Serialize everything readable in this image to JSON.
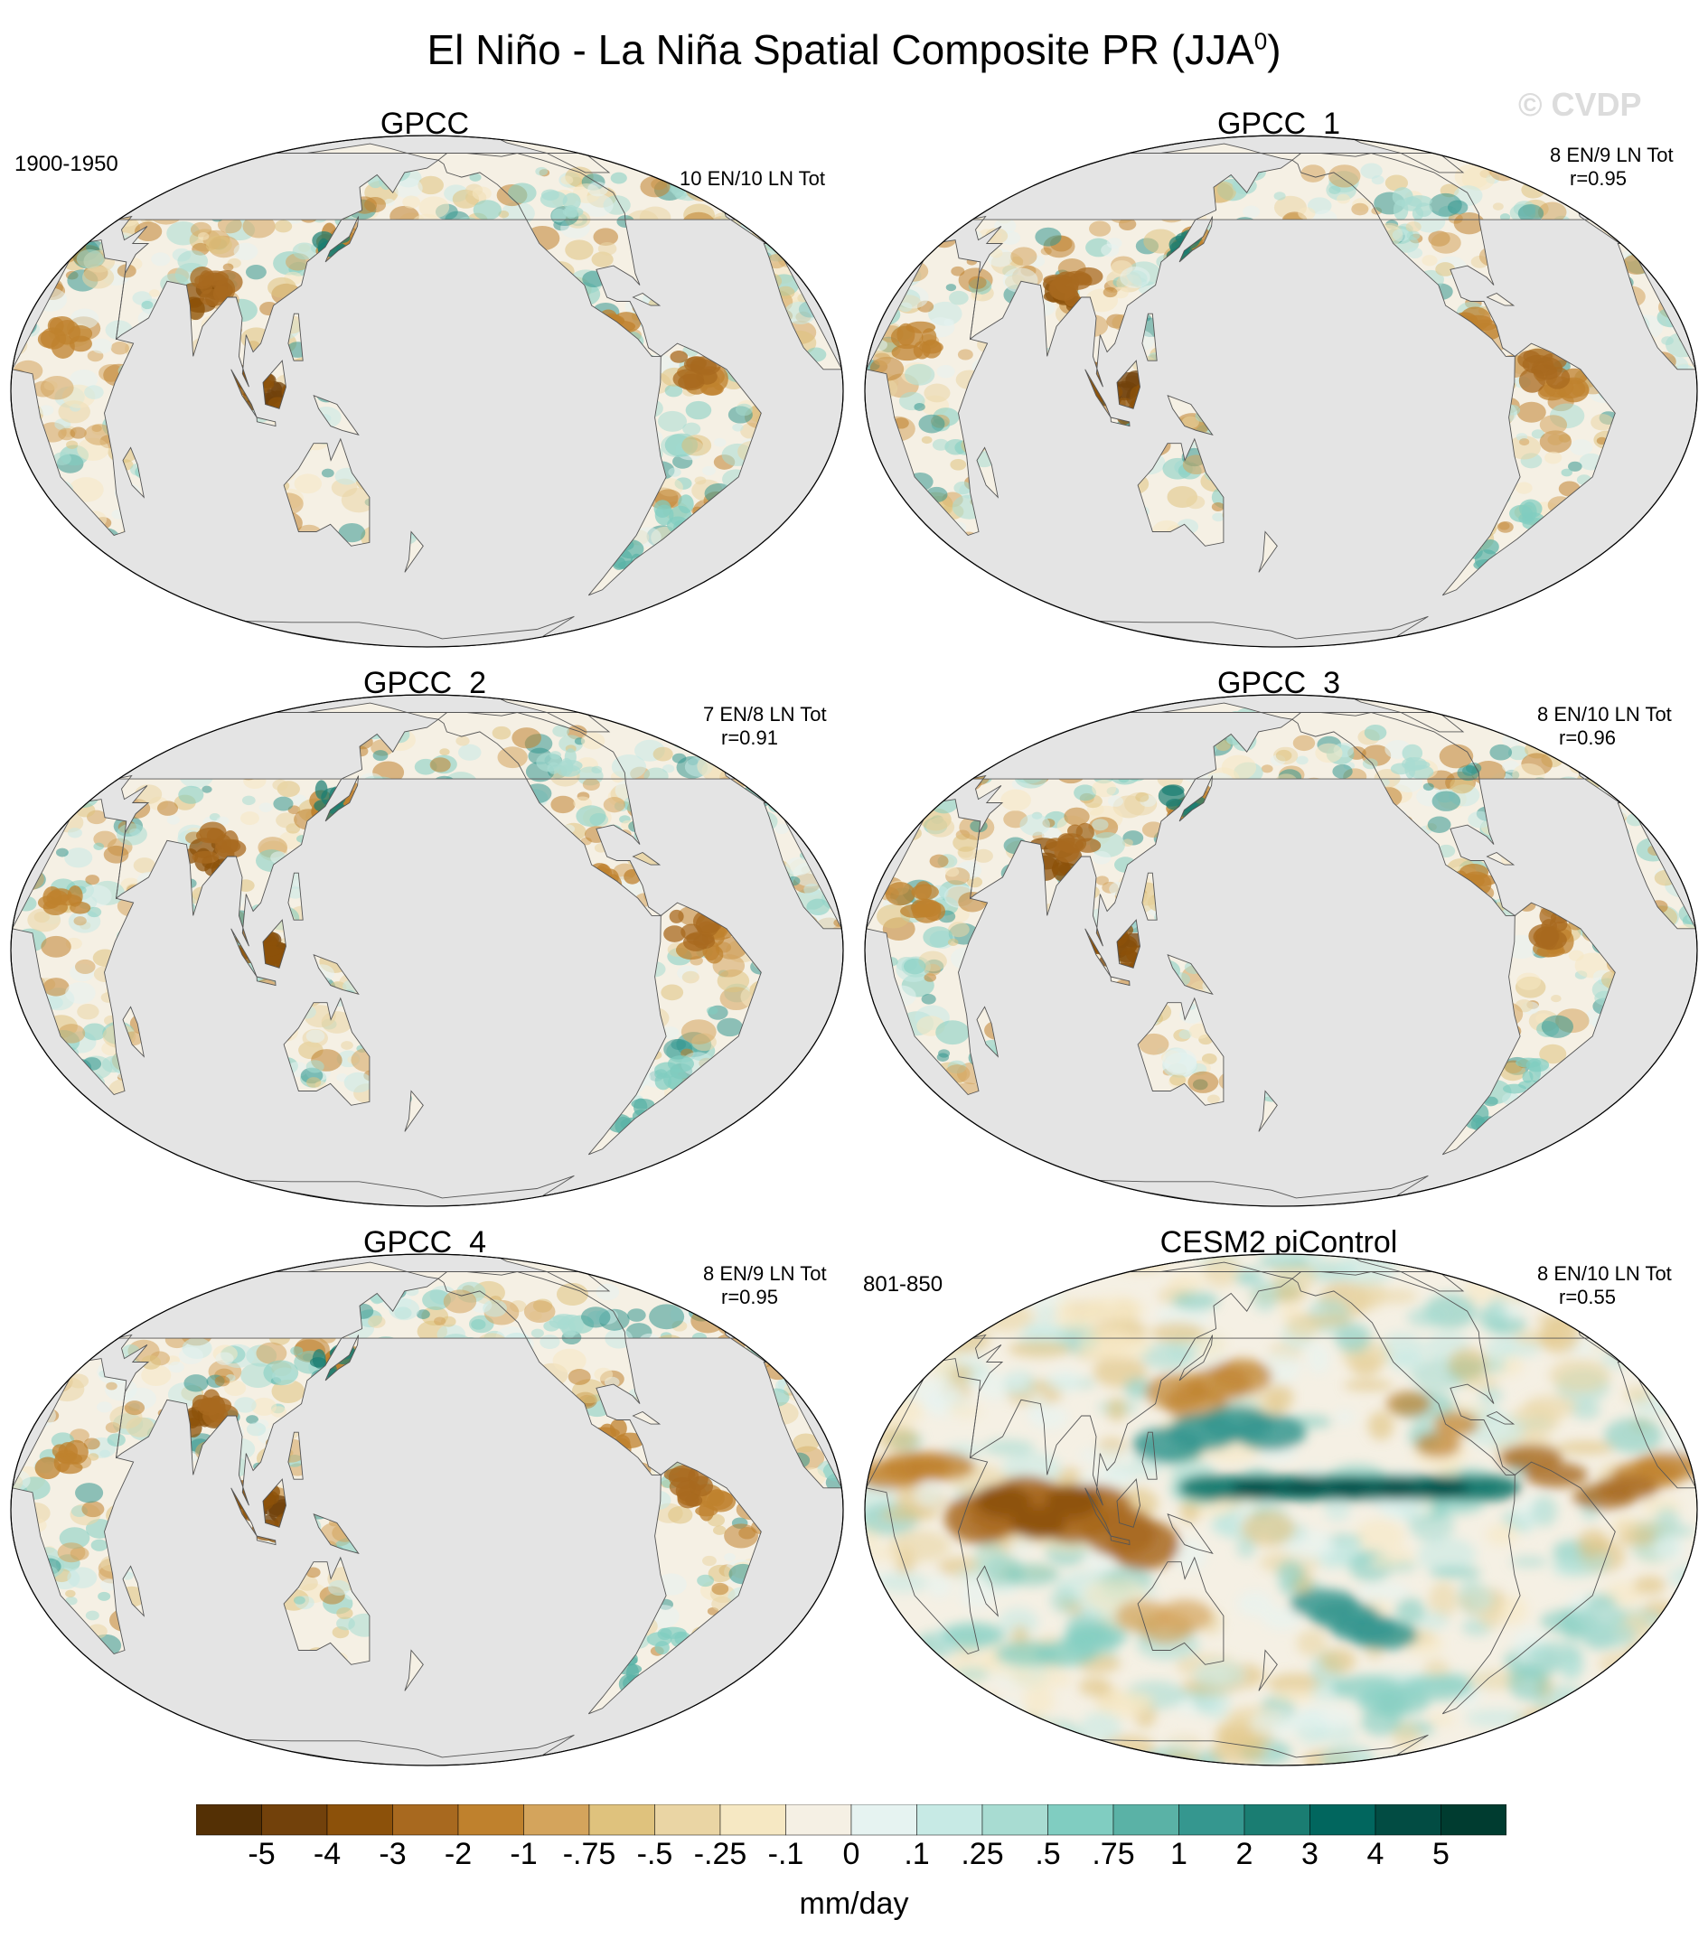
{
  "title": "El Niño - La Niña Spatial Composite PR (JJA",
  "title_sup": "0",
  "title_close": ")",
  "watermark": "© CVDP",
  "panels": [
    {
      "name": "GPCC",
      "period": "1900-1950",
      "stat1": "10 EN/10 LN Tot",
      "stat2": "",
      "style": "obs"
    },
    {
      "name": "GPCC_1",
      "period": "",
      "stat1": "8 EN/9 LN Tot",
      "stat2": "r=0.95",
      "style": "obs"
    },
    {
      "name": "GPCC_2",
      "period": "",
      "stat1": "7 EN/8 LN Tot",
      "stat2": "r=0.91",
      "style": "obs"
    },
    {
      "name": "GPCC_3",
      "period": "",
      "stat1": "8 EN/10 LN Tot",
      "stat2": "r=0.96",
      "style": "obs"
    },
    {
      "name": "GPCC_4",
      "period": "",
      "stat1": "8 EN/9 LN Tot",
      "stat2": "r=0.95",
      "style": "obs"
    },
    {
      "name": "CESM2 piControl",
      "period": "801-850",
      "stat1": "8 EN/10 LN Tot",
      "stat2": "r=0.55",
      "style": "model"
    }
  ],
  "colorbar": {
    "labels": [
      "-5",
      "-4",
      "-3",
      "-2",
      "-1",
      "-.75",
      "-.5",
      "-.25",
      "-.1",
      "0",
      ".1",
      ".25",
      ".5",
      ".75",
      "1",
      "2",
      "3",
      "4",
      "5"
    ],
    "colors": [
      "#543005",
      "#72410b",
      "#8c510a",
      "#a8691f",
      "#bf812d",
      "#d4a45c",
      "#dfc27d",
      "#ead5a4",
      "#f6e8c3",
      "#f5f0e4",
      "#e6f3f1",
      "#c7eae5",
      "#a8dcd2",
      "#80cdc1",
      "#5ab2a6",
      "#35978f",
      "#1a7d72",
      "#01665e",
      "#024c43",
      "#003c30"
    ],
    "units": "mm/day"
  }
}
